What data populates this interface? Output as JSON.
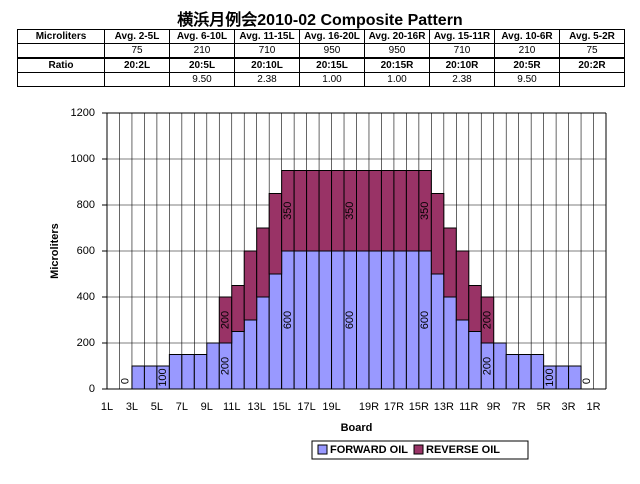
{
  "title": "横浜月例会2010-02 Composite Pattern",
  "table": {
    "rows": [
      [
        "Microliters",
        "Avg. 2-5L",
        "Avg. 6-10L",
        "Avg. 11-15L",
        "Avg. 16-20L",
        "Avg. 20-16R",
        "Avg. 15-11R",
        "Avg. 10-6R",
        "Avg. 5-2R"
      ],
      [
        null,
        "75",
        "210",
        "710",
        "950",
        "950",
        "710",
        "210",
        "75"
      ],
      [
        "Ratio",
        "20:2L",
        "20:5L",
        "20:10L",
        "20:15L",
        "20:15R",
        "20:10R",
        "20:5R",
        "20:2R"
      ],
      [
        null,
        null,
        "9.50",
        "2.38",
        "1.00",
        "1.00",
        "2.38",
        "9.50",
        null
      ]
    ]
  },
  "chart_data": {
    "type": "stacked_bar",
    "x_label": "Board",
    "y_label": "Microliters",
    "categories": [
      "1L",
      null,
      "3L",
      null,
      "5L",
      null,
      "7L",
      null,
      "9L",
      null,
      "11L",
      null,
      "13L",
      null,
      "15L",
      null,
      "17L",
      null,
      "19L",
      null,
      null,
      "19R",
      null,
      "17R",
      null,
      "15R",
      null,
      "13R",
      null,
      "11R",
      null,
      "9R",
      null,
      "7R",
      null,
      "5R",
      null,
      "3R",
      null,
      "1R"
    ],
    "series": [
      {
        "name": "FORWARD OIL",
        "color": "#9999ff",
        "values": [
          0,
          0,
          100,
          100,
          100,
          150,
          150,
          150,
          200,
          200,
          250,
          300,
          400,
          500,
          600,
          600,
          600,
          600,
          600,
          600,
          600,
          600,
          600,
          600,
          600,
          600,
          500,
          400,
          300,
          250,
          200,
          200,
          150,
          150,
          150,
          100,
          100,
          100,
          0,
          0
        ],
        "value_labels": [
          null,
          "0",
          null,
          null,
          "100",
          null,
          null,
          null,
          null,
          "200",
          null,
          null,
          null,
          null,
          "600",
          null,
          null,
          null,
          null,
          "600",
          null,
          null,
          null,
          null,
          null,
          "600",
          null,
          null,
          null,
          null,
          "200",
          null,
          null,
          null,
          null,
          "100",
          null,
          null,
          "0",
          null
        ]
      },
      {
        "name": "REVERSE OIL",
        "color": "#993366",
        "values": [
          0,
          0,
          0,
          0,
          0,
          0,
          0,
          0,
          0,
          200,
          200,
          300,
          300,
          350,
          350,
          350,
          350,
          350,
          350,
          350,
          350,
          350,
          350,
          350,
          350,
          350,
          350,
          300,
          300,
          200,
          200,
          0,
          0,
          0,
          0,
          0,
          0,
          0,
          0,
          0
        ],
        "value_labels": [
          null,
          null,
          null,
          null,
          null,
          null,
          null,
          null,
          null,
          "200",
          null,
          null,
          null,
          null,
          "350",
          null,
          null,
          null,
          null,
          "350",
          null,
          null,
          null,
          null,
          null,
          "350",
          null,
          null,
          null,
          null,
          "200",
          null,
          null,
          null,
          null,
          null,
          null,
          null,
          null,
          null
        ]
      }
    ],
    "ylim": [
      0,
      1200
    ],
    "yticks": [
      0,
      200,
      400,
      600,
      800,
      1000,
      1200
    ],
    "grid": true
  }
}
